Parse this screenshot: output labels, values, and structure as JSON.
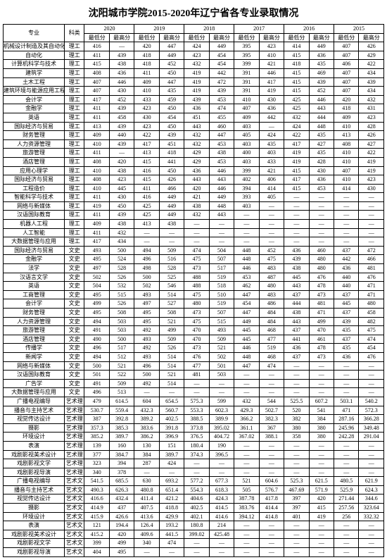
{
  "title": "沈阳城市学院2015-2020年辽宁省各专业录取情况",
  "headers": {
    "major": "专业",
    "category": "科类",
    "years": [
      "2020",
      "2019",
      "2018",
      "2017",
      "2016",
      "2015"
    ],
    "low": "最低分",
    "high": "最高分"
  },
  "rows": [
    {
      "m": "机械设计制造及其自动化",
      "c": "理工",
      "v": [
        "416",
        "—",
        "420",
        "447",
        "424",
        "449",
        "395",
        "423",
        "414",
        "449",
        "407",
        "426"
      ]
    },
    {
      "m": "自动化",
      "c": "理工",
      "v": [
        "411",
        "439",
        "418",
        "449",
        "423",
        "454",
        "395",
        "410",
        "415",
        "436",
        "407",
        "429"
      ]
    },
    {
      "m": "计算机科学与技术",
      "c": "理工",
      "v": [
        "415",
        "438",
        "418",
        "452",
        "432",
        "454",
        "399",
        "421",
        "418",
        "435",
        "406",
        "422"
      ]
    },
    {
      "m": "建筑学",
      "c": "理工",
      "v": [
        "408",
        "436",
        "411",
        "450",
        "419",
        "442",
        "391",
        "446",
        "415",
        "469",
        "407",
        "434"
      ]
    },
    {
      "m": "土木工程",
      "c": "理工",
      "v": [
        "407",
        "446",
        "409",
        "447",
        "419",
        "472",
        "391",
        "417",
        "415",
        "439",
        "407",
        "439"
      ]
    },
    {
      "m": "建筑环境与能源应用工程",
      "c": "理工",
      "v": [
        "407",
        "430",
        "410",
        "435",
        "419",
        "439",
        "391",
        "419",
        "415",
        "452",
        "407",
        "434"
      ]
    },
    {
      "m": "会计学",
      "c": "理工",
      "v": [
        "417",
        "452",
        "433",
        "459",
        "439",
        "453",
        "410",
        "430",
        "425",
        "446",
        "420",
        "432"
      ]
    },
    {
      "m": "金融学",
      "c": "理工",
      "v": [
        "411",
        "439",
        "423",
        "450",
        "436",
        "474",
        "407",
        "436",
        "425",
        "443",
        "418",
        "431"
      ]
    },
    {
      "m": "英语",
      "c": "理工",
      "v": [
        "411",
        "458",
        "430",
        "454",
        "451",
        "455",
        "409",
        "442",
        "432",
        "444",
        "409",
        "423"
      ]
    },
    {
      "m": "国际经济与贸易",
      "c": "理工",
      "v": [
        "413",
        "439",
        "423",
        "450",
        "443",
        "460",
        "403",
        "—",
        "424",
        "448",
        "410",
        "428"
      ]
    },
    {
      "m": "财务管理",
      "c": "理工",
      "v": [
        "409",
        "440",
        "422",
        "439",
        "432",
        "447",
        "405",
        "424",
        "422",
        "435",
        "413",
        "426"
      ]
    },
    {
      "m": "人力资源管理",
      "c": "理工",
      "v": [
        "410",
        "439",
        "417",
        "451",
        "432",
        "453",
        "403",
        "435",
        "417",
        "427",
        "408",
        "427"
      ]
    },
    {
      "m": "旅游管理",
      "c": "理工",
      "v": [
        "411",
        "—",
        "413",
        "418",
        "429",
        "438",
        "400",
        "403",
        "419",
        "435",
        "410",
        "422"
      ]
    },
    {
      "m": "酒店管理",
      "c": "理工",
      "v": [
        "408",
        "420",
        "415",
        "441",
        "429",
        "453",
        "403",
        "433",
        "419",
        "428",
        "410",
        "419"
      ]
    },
    {
      "m": "应用心理学",
      "c": "理工",
      "v": [
        "410",
        "438",
        "416",
        "450",
        "436",
        "446",
        "399",
        "421",
        "415",
        "430",
        "407",
        "419"
      ]
    },
    {
      "m": "国际经济与贸易",
      "c": "理工",
      "v": [
        "408",
        "423",
        "415",
        "426",
        "443",
        "443",
        "402",
        "406",
        "417",
        "436",
        "410",
        "423"
      ]
    },
    {
      "m": "工程造价",
      "c": "理工",
      "v": [
        "410",
        "445",
        "411",
        "466",
        "420",
        "446",
        "394",
        "414",
        "415",
        "453",
        "414",
        "430"
      ]
    },
    {
      "m": "智能科学与技术",
      "c": "理工",
      "v": [
        "411",
        "430",
        "416",
        "449",
        "421",
        "449",
        "393",
        "405",
        "—",
        "—",
        "—",
        "—"
      ]
    },
    {
      "m": "网络与新媒体",
      "c": "理工",
      "v": [
        "419",
        "450",
        "425",
        "449",
        "438",
        "448",
        "403",
        "—",
        "—",
        "—",
        "—",
        "—"
      ]
    },
    {
      "m": "汉语国际教育",
      "c": "理工",
      "v": [
        "411",
        "439",
        "425",
        "449",
        "432",
        "443",
        "—",
        "—",
        "—",
        "—",
        "—",
        "—"
      ]
    },
    {
      "m": "机器人工程",
      "c": "理工",
      "v": [
        "409",
        "438",
        "413",
        "438",
        "—",
        "—",
        "—",
        "—",
        "—",
        "—",
        "—",
        "—"
      ]
    },
    {
      "m": "人工智能",
      "c": "理工",
      "v": [
        "411",
        "432",
        "—",
        "—",
        "—",
        "—",
        "—",
        "—",
        "—",
        "—",
        "—",
        "—"
      ]
    },
    {
      "m": "大数据管理与应用",
      "c": "理工",
      "v": [
        "417",
        "434",
        "—",
        "—",
        "—",
        "—",
        "—",
        "—",
        "—",
        "—",
        "—",
        "—"
      ]
    },
    {
      "m": "国际经济与贸易",
      "c": "文史",
      "v": [
        "493",
        "500",
        "494",
        "509",
        "474",
        "504",
        "448",
        "452",
        "436",
        "460",
        "437",
        "472"
      ]
    },
    {
      "m": "金融学",
      "c": "文史",
      "v": [
        "495",
        "524",
        "496",
        "516",
        "475",
        "507",
        "448",
        "475",
        "439",
        "480",
        "442",
        "466"
      ]
    },
    {
      "m": "法学",
      "c": "文史",
      "v": [
        "497",
        "528",
        "498",
        "528",
        "473",
        "517",
        "446",
        "483",
        "438",
        "480",
        "436",
        "481"
      ]
    },
    {
      "m": "汉语言文学",
      "c": "文史",
      "v": [
        "502",
        "526",
        "500",
        "525",
        "488",
        "519",
        "453",
        "487",
        "445",
        "476",
        "440",
        "476"
      ]
    },
    {
      "m": "英语",
      "c": "文史",
      "v": [
        "504",
        "532",
        "502",
        "546",
        "488",
        "518",
        "462",
        "480",
        "443",
        "478",
        "440",
        "471"
      ]
    },
    {
      "m": "工商管理",
      "c": "文史",
      "v": [
        "495",
        "515",
        "493",
        "514",
        "475",
        "510",
        "447",
        "483",
        "437",
        "473",
        "437",
        "471"
      ]
    },
    {
      "m": "会计学",
      "c": "文史",
      "v": [
        "499",
        "526",
        "497",
        "527",
        "480",
        "519",
        "454",
        "486",
        "444",
        "481",
        "445",
        "480"
      ]
    },
    {
      "m": "财务管理",
      "c": "文史",
      "v": [
        "495",
        "508",
        "495",
        "508",
        "473",
        "507",
        "447",
        "484",
        "438",
        "471",
        "437",
        "458"
      ]
    },
    {
      "m": "人力资源管理",
      "c": "文史",
      "v": [
        "494",
        "503",
        "495",
        "521",
        "475",
        "515",
        "449",
        "484",
        "443",
        "499",
        "439",
        "482"
      ]
    },
    {
      "m": "旅游管理",
      "c": "文史",
      "v": [
        "491",
        "503",
        "492",
        "499",
        "470",
        "493",
        "445",
        "468",
        "437",
        "470",
        "435",
        "475"
      ]
    },
    {
      "m": "酒店管理",
      "c": "文史",
      "v": [
        "490",
        "500",
        "493",
        "509",
        "470",
        "509",
        "445",
        "477",
        "441",
        "461",
        "437",
        "474"
      ]
    },
    {
      "m": "传播学",
      "c": "文史",
      "v": [
        "496",
        "517",
        "492",
        "526",
        "473",
        "521",
        "446",
        "519",
        "436",
        "478",
        "435",
        "454"
      ]
    },
    {
      "m": "新闻学",
      "c": "文史",
      "v": [
        "494",
        "512",
        "493",
        "514",
        "476",
        "502",
        "448",
        "468",
        "437",
        "473",
        "436",
        "476"
      ]
    },
    {
      "m": "网络与新媒体",
      "c": "文史",
      "v": [
        "500",
        "521",
        "496",
        "514",
        "477",
        "501",
        "447",
        "474",
        "—",
        "—",
        "—",
        "—"
      ]
    },
    {
      "m": "汉语国际教育",
      "c": "文史",
      "v": [
        "501",
        "522",
        "500",
        "521",
        "481",
        "503",
        "—",
        "—",
        "—",
        "—",
        "—",
        "—"
      ]
    },
    {
      "m": "广告学",
      "c": "文史",
      "v": [
        "491",
        "509",
        "492",
        "514",
        "—",
        "—",
        "—",
        "—",
        "—",
        "—",
        "—",
        "—"
      ]
    },
    {
      "m": "大数据管理与应用",
      "c": "文史",
      "v": [
        "496",
        "513",
        "—",
        "—",
        "—",
        "—",
        "—",
        "—",
        "—",
        "—",
        "—",
        "—"
      ]
    },
    {
      "m": "广播电视编导",
      "c": "艺术理",
      "v": [
        "479",
        "614.5",
        "604",
        "654.5",
        "575.3",
        "599",
        "432",
        "544",
        "525.5",
        "607.2",
        "503.1",
        "540.2"
      ]
    },
    {
      "m": "播音与主持艺术",
      "c": "艺术理",
      "v": [
        "530.7",
        "559.4",
        "432.3",
        "560.7",
        "553.3",
        "602.3",
        "429.3",
        "502.7",
        "520",
        "541",
        "471",
        "572.3"
      ]
    },
    {
      "m": "视觉传达设计",
      "c": "艺术理",
      "v": [
        "387",
        "392.8",
        "389.2",
        "402.5",
        "388.5",
        "389.9",
        "366.2",
        "382.3",
        "382",
        "384",
        "287.16",
        "366.28"
      ]
    },
    {
      "m": "摄影",
      "c": "艺术理",
      "v": [
        "357.3",
        "385.3",
        "383.6",
        "391.8",
        "373.8",
        "395.02",
        "361.1",
        "367",
        "380",
        "380",
        "245.96",
        "349.48"
      ]
    },
    {
      "m": "环境设计",
      "c": "艺术理",
      "v": [
        "385.2",
        "389.7",
        "386.2",
        "396.9",
        "376.5",
        "404.72",
        "367.02",
        "388.1",
        "358",
        "380",
        "242.28",
        "291.04"
      ]
    },
    {
      "m": "表演",
      "c": "艺术理",
      "v": [
        "139",
        "160",
        "130",
        "151",
        "180.4",
        "190",
        "—",
        "—",
        "—",
        "—",
        "—",
        "—"
      ]
    },
    {
      "m": "戏剧影视美术设计",
      "c": "艺术理",
      "v": [
        "377",
        "384.7",
        "384",
        "389.7",
        "374.3",
        "396.5",
        "—",
        "—",
        "—",
        "—",
        "—",
        "—"
      ]
    },
    {
      "m": "戏剧影视文学",
      "c": "艺术理",
      "v": [
        "323",
        "394",
        "287",
        "424",
        "—",
        "—",
        "—",
        "—",
        "—",
        "—",
        "—",
        "—"
      ]
    },
    {
      "m": "戏剧影视导演",
      "c": "艺术理",
      "v": [
        "340",
        "378",
        "—",
        "—",
        "—",
        "—",
        "—",
        "—",
        "—",
        "—",
        "—",
        "—"
      ]
    },
    {
      "m": "广播电视编导",
      "c": "艺术文",
      "v": [
        "541.5",
        "685.5",
        "630",
        "693.2",
        "577.2",
        "677.3",
        "521",
        "604.6",
        "525.3",
        "621.5",
        "480.5",
        "621.9"
      ]
    },
    {
      "m": "播音与主持艺术",
      "c": "艺术文",
      "v": [
        "490.3",
        "626.3",
        "480.8",
        "651.4",
        "554.3",
        "618.3",
        "505",
        "576.7",
        "467.69",
        "571.9",
        "525.9",
        "624.3"
      ]
    },
    {
      "m": "视觉传达设计",
      "c": "艺术文",
      "v": [
        "416.6",
        "432.4",
        "411.4",
        "421.2",
        "404.6",
        "424.3",
        "387.78",
        "417.8",
        "397",
        "420",
        "271.44",
        "344.6"
      ]
    },
    {
      "m": "摄影",
      "c": "艺术文",
      "v": [
        "414.9",
        "437",
        "407.5",
        "418.8",
        "402.5",
        "414.5",
        "383.76",
        "414.4",
        "397",
        "415",
        "257.56",
        "323.64"
      ]
    },
    {
      "m": "环境设计",
      "c": "艺术文",
      "v": [
        "415.9",
        "426.6",
        "413.6",
        "429.9",
        "402.1",
        "414.6",
        "394.12",
        "414.8",
        "401",
        "419",
        "256",
        "332.32"
      ]
    },
    {
      "m": "表演",
      "c": "艺术文",
      "v": [
        "121",
        "194.4",
        "126.4",
        "193.2",
        "180.8",
        "214",
        "—",
        "—",
        "—",
        "—",
        "—",
        "—"
      ]
    },
    {
      "m": "戏剧影视美术设计",
      "c": "艺术文",
      "v": [
        "415.2",
        "420",
        "409.6",
        "441.5",
        "399.02",
        "425.48",
        "—",
        "—",
        "—",
        "—",
        "—",
        "—"
      ]
    },
    {
      "m": "戏剧影视文学",
      "c": "艺术文",
      "v": [
        "399",
        "499",
        "340",
        "474",
        "—",
        "—",
        "—",
        "—",
        "—",
        "—",
        "—",
        "—"
      ]
    },
    {
      "m": "戏剧影视导演",
      "c": "艺术文",
      "v": [
        "404",
        "495",
        "—",
        "—",
        "—",
        "—",
        "—",
        "—",
        "—",
        "—",
        "—",
        "—"
      ]
    }
  ]
}
